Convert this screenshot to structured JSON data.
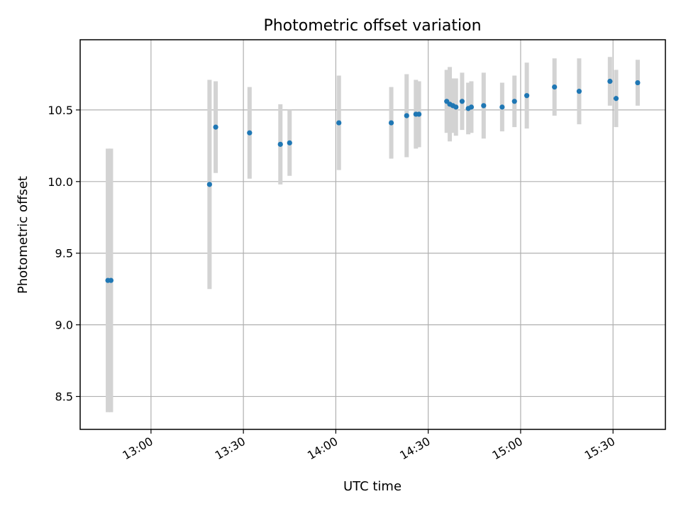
{
  "chart_data": {
    "type": "scatter",
    "title": "Photometric offset variation",
    "xlabel": "UTC time",
    "ylabel": "Photometric offset",
    "x_tick_labels": [
      "13:00",
      "13:30",
      "14:00",
      "14:30",
      "15:00",
      "15:30"
    ],
    "y_tick_labels": [
      "8.5",
      "9.0",
      "9.5",
      "10.0",
      "10.5"
    ],
    "y_ticks": [
      8.5,
      9.0,
      9.5,
      10.0,
      10.5
    ],
    "xlim": [
      "12:37",
      "15:47"
    ],
    "ylim": [
      8.27,
      10.99
    ],
    "grid": true,
    "colors": {
      "point": "#1f77b4",
      "errorbar": "#d3d3d3"
    },
    "points": [
      {
        "x": "12:46",
        "y": 9.31,
        "err": 0.92
      },
      {
        "x": "12:47",
        "y": 9.31,
        "err": 0.92
      },
      {
        "x": "13:19",
        "y": 9.98,
        "err": 0.73
      },
      {
        "x": "13:21",
        "y": 10.38,
        "err": 0.32
      },
      {
        "x": "13:32",
        "y": 10.34,
        "err": 0.32
      },
      {
        "x": "13:42",
        "y": 10.26,
        "err": 0.28
      },
      {
        "x": "13:45",
        "y": 10.27,
        "err": 0.23
      },
      {
        "x": "14:01",
        "y": 10.41,
        "err": 0.33
      },
      {
        "x": "14:18",
        "y": 10.41,
        "err": 0.25
      },
      {
        "x": "14:23",
        "y": 10.46,
        "err": 0.29
      },
      {
        "x": "14:26",
        "y": 10.47,
        "err": 0.24
      },
      {
        "x": "14:27",
        "y": 10.47,
        "err": 0.23
      },
      {
        "x": "14:36",
        "y": 10.56,
        "err": 0.22
      },
      {
        "x": "14:37",
        "y": 10.54,
        "err": 0.26
      },
      {
        "x": "14:38",
        "y": 10.53,
        "err": 0.19
      },
      {
        "x": "14:39",
        "y": 10.52,
        "err": 0.2
      },
      {
        "x": "14:41",
        "y": 10.56,
        "err": 0.2
      },
      {
        "x": "14:43",
        "y": 10.51,
        "err": 0.18
      },
      {
        "x": "14:44",
        "y": 10.52,
        "err": 0.18
      },
      {
        "x": "14:48",
        "y": 10.53,
        "err": 0.23
      },
      {
        "x": "14:54",
        "y": 10.52,
        "err": 0.17
      },
      {
        "x": "14:58",
        "y": 10.56,
        "err": 0.18
      },
      {
        "x": "15:02",
        "y": 10.6,
        "err": 0.23
      },
      {
        "x": "15:11",
        "y": 10.66,
        "err": 0.2
      },
      {
        "x": "15:19",
        "y": 10.63,
        "err": 0.23
      },
      {
        "x": "15:29",
        "y": 10.7,
        "err": 0.17
      },
      {
        "x": "15:31",
        "y": 10.58,
        "err": 0.2
      },
      {
        "x": "15:38",
        "y": 10.69,
        "err": 0.16
      }
    ]
  }
}
